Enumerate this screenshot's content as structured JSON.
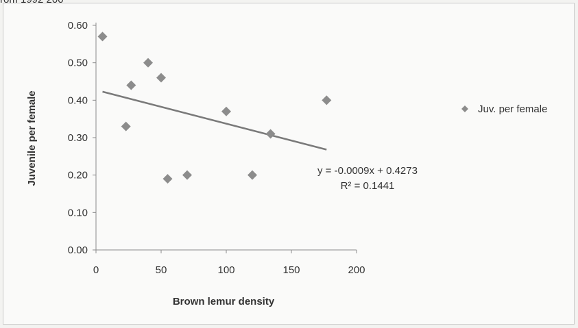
{
  "page": {
    "clipped_heading": "rom 1992 200"
  },
  "chart_data": {
    "type": "scatter",
    "xlabel": "Brown lemur density",
    "ylabel": "Juvenile per female",
    "xlim": [
      0,
      200
    ],
    "ylim": [
      0,
      0.6
    ],
    "x_ticks": [
      "0",
      "50",
      "100",
      "150",
      "200"
    ],
    "y_ticks": [
      "0.00",
      "0.10",
      "0.20",
      "0.30",
      "0.40",
      "0.50",
      "0.60"
    ],
    "grid": false,
    "legend_position": "right",
    "series": [
      {
        "name": "Juv. per female",
        "color": "#8c8c8c",
        "marker": "diamond",
        "x": [
          5,
          23,
          27,
          40,
          50,
          55,
          70,
          100,
          120,
          134,
          177
        ],
        "y": [
          0.57,
          0.33,
          0.44,
          0.5,
          0.46,
          0.19,
          0.2,
          0.37,
          0.2,
          0.31,
          0.4
        ]
      }
    ],
    "trendline": {
      "slope": -0.0009,
      "intercept": 0.4273,
      "x_range": [
        5,
        177
      ],
      "color": "#7a7a7a"
    },
    "annotations": {
      "equation": "y = -0.0009x + 0.4273",
      "r_squared": "R² = 0.1441"
    }
  }
}
